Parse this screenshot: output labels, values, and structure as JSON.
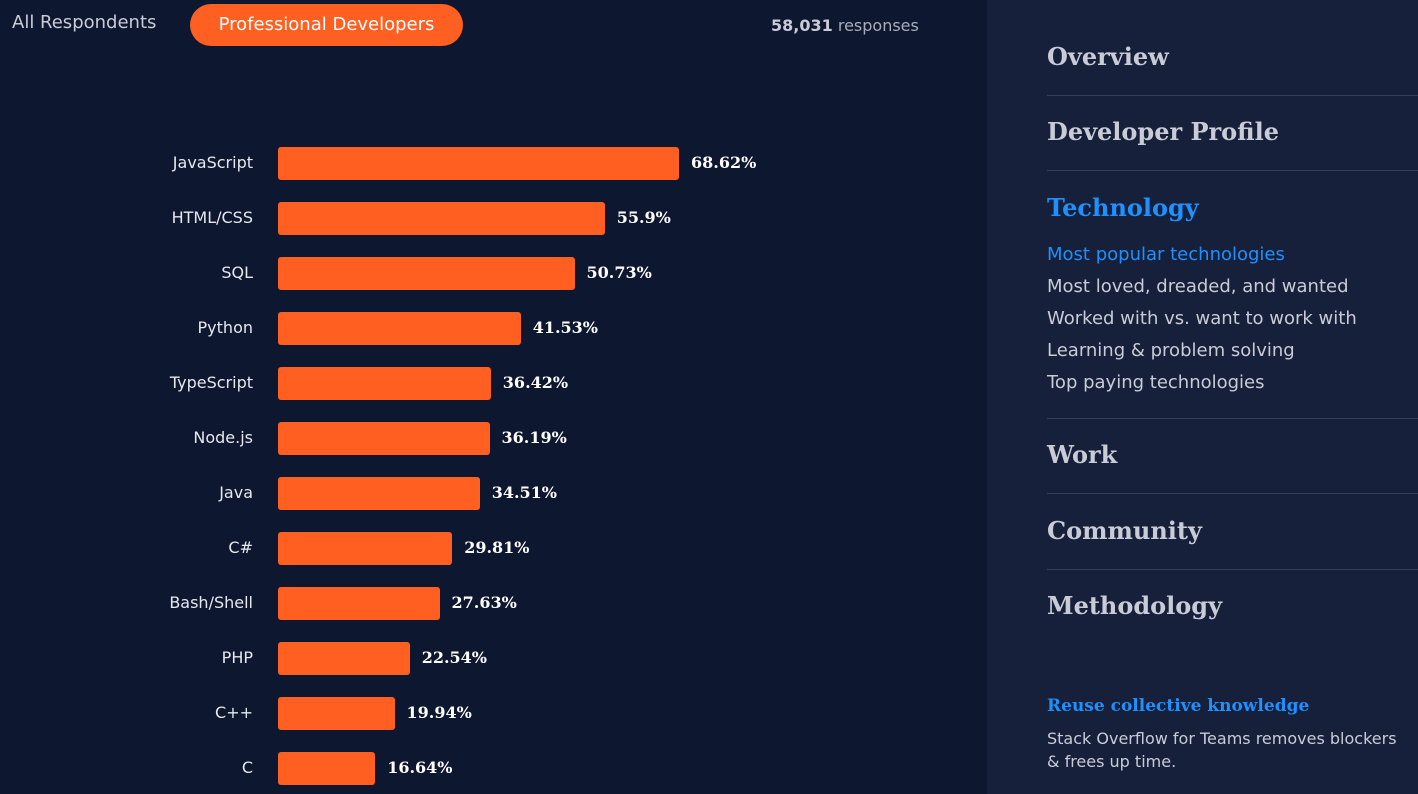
{
  "filters": {
    "all_label": "All Respondents",
    "pro_label": "Professional Developers"
  },
  "responses": {
    "count": "58,031",
    "label": "responses"
  },
  "chart_data": {
    "type": "bar",
    "orientation": "horizontal",
    "categories": [
      "JavaScript",
      "HTML/CSS",
      "SQL",
      "Python",
      "TypeScript",
      "Node.js",
      "Java",
      "C#",
      "Bash/Shell",
      "PHP",
      "C++",
      "C"
    ],
    "values": [
      68.62,
      55.9,
      50.73,
      41.53,
      36.42,
      36.19,
      34.51,
      29.81,
      27.63,
      22.54,
      19.94,
      16.64
    ],
    "value_labels": [
      "68.62%",
      "55.9%",
      "50.73%",
      "41.53%",
      "36.42%",
      "36.19%",
      "34.51%",
      "29.81%",
      "27.63%",
      "22.54%",
      "19.94%",
      "16.64%"
    ],
    "unit": "%",
    "bar_color": "#ff5f20"
  },
  "sidebar": {
    "sections": [
      "Overview",
      "Developer Profile",
      "Technology",
      "Work",
      "Community",
      "Methodology"
    ],
    "active_section": "Technology",
    "technology_items": [
      "Most popular technologies",
      "Most loved, dreaded, and wanted",
      "Worked with vs. want to work with",
      "Learning & problem solving",
      "Top paying technologies"
    ],
    "active_item": "Most popular technologies",
    "promo": {
      "title": "Reuse collective knowledge",
      "text": "Stack Overflow for Teams removes blockers & frees up time."
    }
  },
  "colors": {
    "accent": "#ff5f20",
    "link": "#1e90ff",
    "background": "#0e1730",
    "sidebar_bg": "#17203a"
  }
}
